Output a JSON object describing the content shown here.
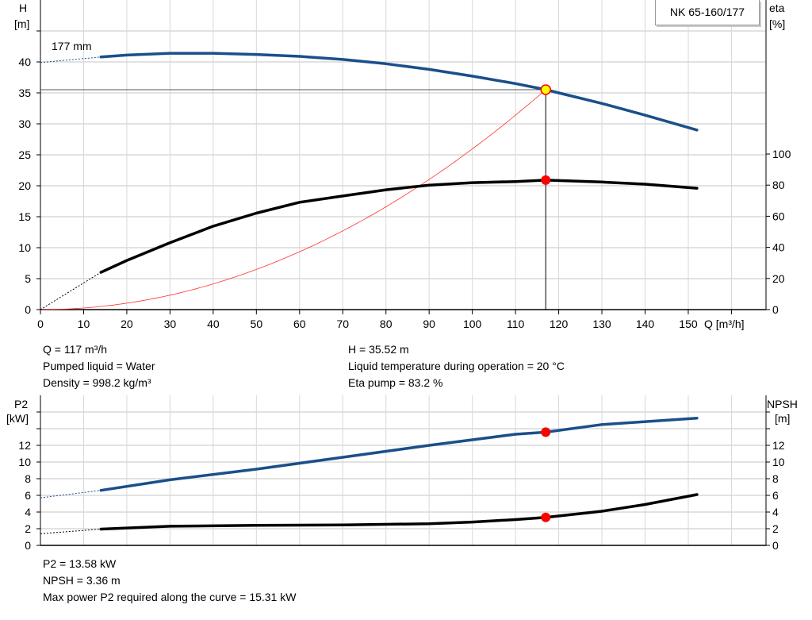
{
  "chart_data": [
    {
      "type": "line",
      "title": "NK 65-160/177",
      "xlabel": "Q [m³/h]",
      "ylabel_left": [
        "H",
        "[m]"
      ],
      "ylabel_right": [
        "eta",
        "[%]"
      ],
      "xlim": [
        0,
        168
      ],
      "ylim_left": [
        0,
        50
      ],
      "ylim_right_eta": [
        0,
        100
      ],
      "x_ticks": [
        0,
        10,
        20,
        30,
        40,
        50,
        60,
        70,
        80,
        90,
        100,
        110,
        120,
        130,
        140,
        150
      ],
      "y_ticks_left": [
        0,
        5,
        10,
        15,
        20,
        25,
        30,
        35,
        40
      ],
      "y_ticks_right": [
        0,
        20,
        40,
        60,
        80,
        100
      ],
      "grid": true,
      "annotations": [
        "177 mm"
      ],
      "series": [
        {
          "id": "H",
          "axis": "left",
          "color": "#1a4f8a",
          "dashed_from": [
            [
              0,
              39.9
            ],
            [
              14,
              40.8
            ]
          ],
          "x": [
            14,
            20,
            30,
            40,
            50,
            60,
            70,
            80,
            90,
            100,
            110,
            117,
            120,
            130,
            140,
            152
          ],
          "y": [
            40.8,
            41.1,
            41.4,
            41.4,
            41.2,
            40.9,
            40.4,
            39.7,
            38.8,
            37.7,
            36.5,
            35.52,
            35.0,
            33.3,
            31.4,
            29.0
          ]
        },
        {
          "id": "eta",
          "axis": "right",
          "color": "#000000",
          "dashed_from": [
            [
              0,
              0
            ],
            [
              14,
              24
            ]
          ],
          "x": [
            14,
            20,
            30,
            40,
            50,
            60,
            70,
            80,
            90,
            100,
            110,
            117,
            130,
            140,
            152
          ],
          "y": [
            24,
            31.6,
            43,
            53.6,
            62,
            69,
            73,
            77,
            80,
            81.6,
            82.3,
            83.2,
            82,
            80.6,
            78
          ]
        },
        {
          "id": "system",
          "axis": "left",
          "color": "#ff3030",
          "quadratic_through": [
            117,
            35.52
          ]
        }
      ],
      "operating_point": {
        "Q": 117,
        "H": 35.52,
        "eta": 83.2
      }
    },
    {
      "type": "line",
      "ylabel_left": [
        "P2",
        "[kW]"
      ],
      "ylabel_right": [
        "NPSH",
        "[m]"
      ],
      "xlim": [
        0,
        168
      ],
      "ylim": [
        0,
        18
      ],
      "y_ticks_labeled": [
        0,
        2,
        4,
        6,
        8,
        10,
        12
      ],
      "y_ticks_all": [
        0,
        2,
        4,
        6,
        8,
        10,
        12,
        14,
        16
      ],
      "grid": true,
      "series": [
        {
          "id": "P2",
          "color": "#1a4f8a",
          "dashed_from": [
            [
              0,
              5.7
            ],
            [
              14,
              6.6
            ]
          ],
          "x": [
            14,
            30,
            50,
            70,
            90,
            110,
            117,
            130,
            152
          ],
          "y": [
            6.6,
            7.87,
            9.14,
            10.57,
            12.0,
            13.33,
            13.58,
            14.5,
            15.27
          ]
        },
        {
          "id": "NPSH",
          "color": "#000000",
          "dashed_from": [
            [
              0,
              1.4
            ],
            [
              14,
              1.95
            ]
          ],
          "x": [
            14,
            30,
            50,
            70,
            90,
            100,
            110,
            117,
            130,
            140,
            152
          ],
          "y": [
            1.95,
            2.3,
            2.4,
            2.45,
            2.6,
            2.8,
            3.1,
            3.36,
            4.1,
            4.9,
            6.1
          ]
        }
      ],
      "operating_point": {
        "Q": 117,
        "P2": 13.58,
        "NPSH": 3.36
      }
    }
  ],
  "info_top": {
    "left": [
      "Q = 117 m³/h",
      "Pumped liquid = Water",
      "Density = 998.2 kg/m³"
    ],
    "right": [
      "H = 35.52 m",
      "Liquid temperature during operation = 20 °C",
      "Eta pump = 83.2 %"
    ]
  },
  "info_bottom": [
    "P2 = 13.58 kW",
    "NPSH = 3.36 m",
    "Max power P2 required along the curve = 15.31 kW"
  ]
}
